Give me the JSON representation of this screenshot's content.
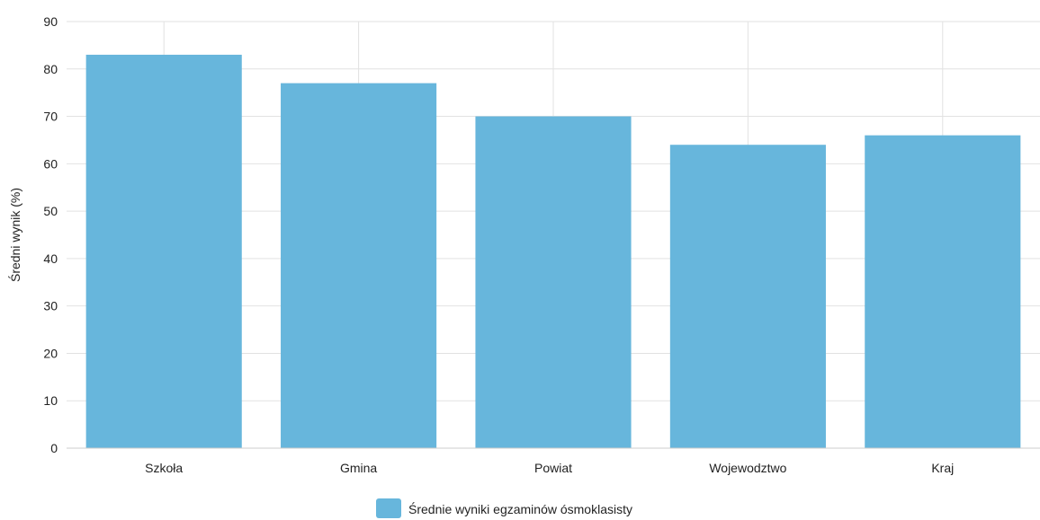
{
  "chart_data": {
    "type": "bar",
    "title": "",
    "xlabel": "",
    "ylabel": "Średni wynik (%)",
    "ylim": [
      0,
      90
    ],
    "yticks": [
      0,
      10,
      20,
      30,
      40,
      50,
      60,
      70,
      80,
      90
    ],
    "grid": true,
    "legend_position": "bottom",
    "categories": [
      "Szkoła",
      "Gmina",
      "Powiat",
      "Wojewodztwo",
      "Kraj"
    ],
    "series": [
      {
        "name": "Średnie wyniki egzaminów ósmoklasisty",
        "color": "#67b6dc",
        "values": [
          83,
          77,
          70,
          64,
          66
        ]
      }
    ]
  }
}
